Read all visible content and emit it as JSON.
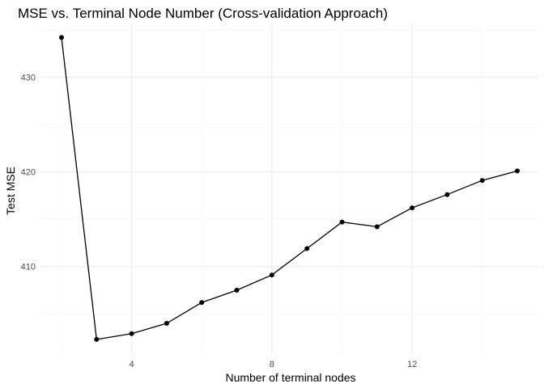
{
  "chart_data": {
    "type": "line",
    "title": "MSE vs. Terminal Node Number (Cross-validation Approach)",
    "xlabel": "Number of terminal nodes",
    "ylabel": "Test MSE",
    "x": [
      2,
      3,
      4,
      5,
      6,
      7,
      8,
      9,
      10,
      11,
      12,
      13,
      14,
      15
    ],
    "values": [
      434.2,
      402.3,
      402.9,
      404.0,
      406.2,
      407.5,
      409.1,
      411.9,
      414.7,
      414.2,
      416.2,
      417.6,
      419.1,
      420.1
    ],
    "xlim": [
      1.4,
      15.6
    ],
    "ylim": [
      400.75,
      435.6
    ],
    "x_ticks": [
      4,
      8,
      12
    ],
    "x_tick_labels": [
      "4",
      "8",
      "12"
    ],
    "y_ticks": [
      410,
      420,
      430
    ],
    "y_tick_labels": [
      "410",
      "420",
      "430"
    ],
    "grid": true,
    "legend": "none"
  }
}
